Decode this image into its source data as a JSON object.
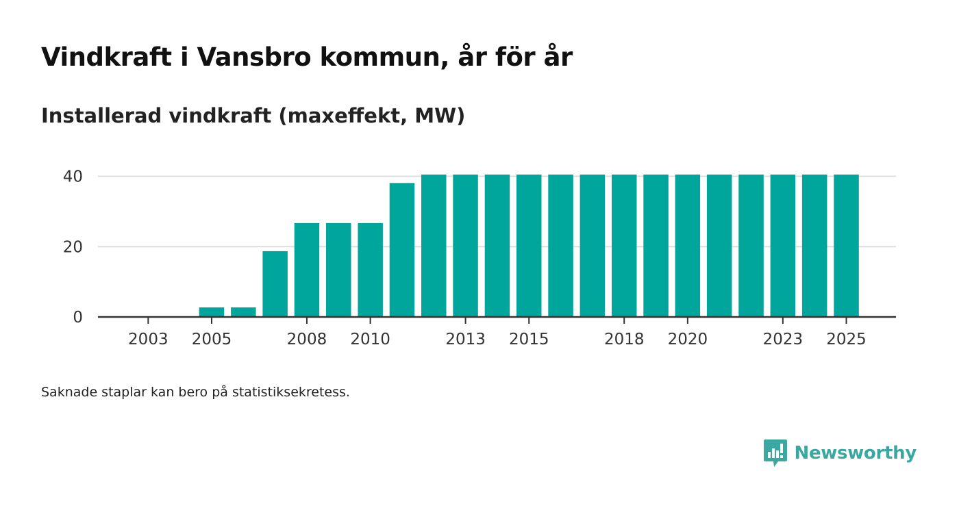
{
  "title": "Vindkraft i Vansbro kommun, år för år",
  "subtitle": "Installerad vindkraft (maxeffekt, MW)",
  "footnote": "Saknade staplar kan bero på statistiksekretess.",
  "brand": {
    "name": "Newsworthy",
    "color": "#3aa8a0"
  },
  "colors": {
    "bar": "#00a59b",
    "grid": "#dddddd",
    "axis": "#333333",
    "tick_text": "#333333"
  },
  "chart_data": {
    "type": "bar",
    "title": "Vindkraft i Vansbro kommun, år för år",
    "ylabel": "Installerad vindkraft (maxeffekt, MW)",
    "xlabel": "",
    "categories": [
      "2002",
      "2003",
      "2004",
      "2005",
      "2006",
      "2007",
      "2008",
      "2009",
      "2010",
      "2011",
      "2012",
      "2013",
      "2014",
      "2015",
      "2016",
      "2017",
      "2018",
      "2019",
      "2020",
      "2021",
      "2022",
      "2023",
      "2024",
      "2025"
    ],
    "values": [
      0,
      0,
      0,
      2.7,
      2.7,
      18.7,
      26.7,
      26.7,
      26.7,
      38.1,
      40.5,
      40.5,
      40.5,
      40.5,
      40.5,
      40.5,
      40.5,
      40.5,
      40.5,
      40.5,
      40.5,
      40.5,
      40.5,
      40.5
    ],
    "x_tick_labels": [
      "2003",
      "2005",
      "2008",
      "2010",
      "2013",
      "2015",
      "2018",
      "2020",
      "2023",
      "2025"
    ],
    "y_ticks": [
      0,
      20,
      40
    ],
    "ylim": [
      0,
      40.5
    ],
    "grid": true
  }
}
